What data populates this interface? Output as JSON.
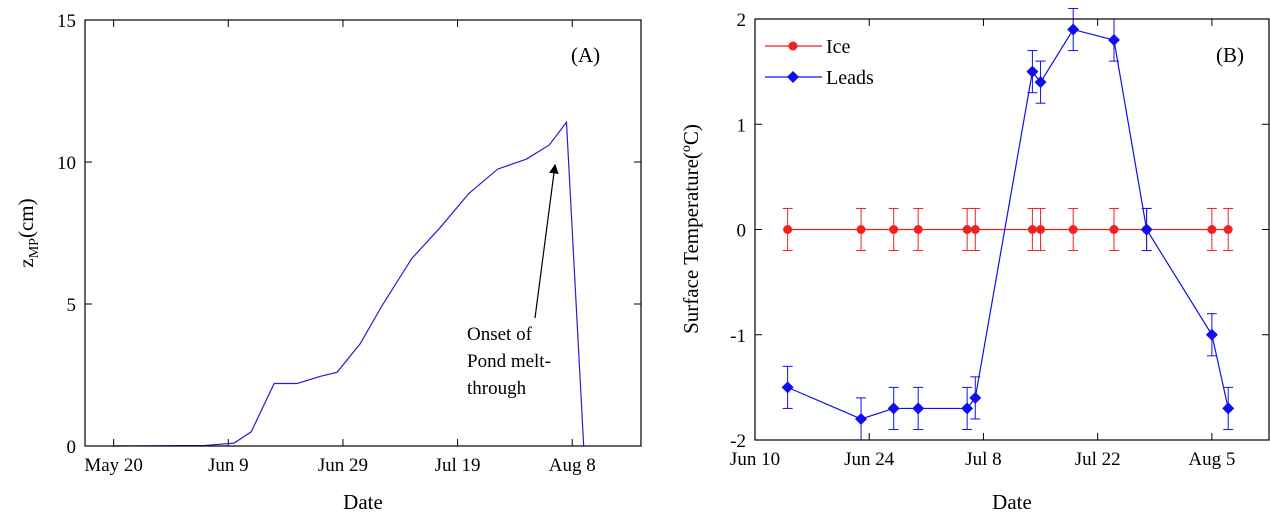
{
  "chart_data": [
    {
      "type": "line",
      "panel_label": "(A)",
      "xlabel": "Date",
      "ylabel_main": "z",
      "ylabel_sub": "MP",
      "ylabel_rest": "(cm)",
      "xlim": [
        "2008-05-15",
        "2008-08-20"
      ],
      "ylim": [
        0,
        15
      ],
      "xticks": [
        {
          "date": "2008-05-20",
          "label": "May 20"
        },
        {
          "date": "2008-06-09",
          "label": "Jun 9"
        },
        {
          "date": "2008-06-29",
          "label": "Jun 29"
        },
        {
          "date": "2008-07-19",
          "label": "Jul 19"
        },
        {
          "date": "2008-08-08",
          "label": "Aug 8"
        }
      ],
      "yticks": [
        0,
        5,
        10,
        15
      ],
      "grid": false,
      "line_color": "#2222cc",
      "series": [
        {
          "x": [
            "2008-05-20",
            "2008-06-05",
            "2008-06-10",
            "2008-06-13",
            "2008-06-17",
            "2008-06-21",
            "2008-06-25",
            "2008-06-28",
            "2008-07-02",
            "2008-07-06",
            "2008-07-11",
            "2008-07-16",
            "2008-07-21",
            "2008-07-26",
            "2008-07-31",
            "2008-08-04",
            "2008-08-07",
            "2008-08-10"
          ],
          "y": [
            0,
            0.02,
            0.1,
            0.5,
            2.2,
            2.2,
            2.45,
            2.6,
            3.6,
            5.0,
            6.6,
            7.7,
            8.9,
            9.75,
            10.1,
            10.6,
            11.4,
            0
          ]
        }
      ],
      "annotation": {
        "lines": [
          "Onset of",
          "Pond melt-",
          "through"
        ],
        "arrow_to": {
          "date": "2008-08-05",
          "y": 9.9
        }
      }
    },
    {
      "type": "line",
      "panel_label": "(B)",
      "xlabel": "Date",
      "ylabel_main": "Surface Temperature(",
      "ylabel_sup": "o",
      "ylabel_rest": "C)",
      "xlim": [
        "2008-06-10",
        "2008-08-12"
      ],
      "ylim": [
        -2,
        2
      ],
      "xticks": [
        {
          "date": "2008-06-10",
          "label": "Jun 10"
        },
        {
          "date": "2008-06-24",
          "label": "Jun 24"
        },
        {
          "date": "2008-07-08",
          "label": "Jul 8"
        },
        {
          "date": "2008-07-22",
          "label": "Jul 22"
        },
        {
          "date": "2008-08-05",
          "label": "Aug 5"
        }
      ],
      "yticks": [
        -2,
        -1,
        0,
        1,
        2
      ],
      "grid": false,
      "legend_position": "top-left",
      "series": [
        {
          "name": "Ice",
          "color": "#ee2222",
          "marker": "circle",
          "x": [
            "2008-06-14",
            "2008-06-23",
            "2008-06-27",
            "2008-06-30",
            "2008-07-06",
            "2008-07-07",
            "2008-07-14",
            "2008-07-15",
            "2008-07-19",
            "2008-07-24",
            "2008-07-28",
            "2008-08-05",
            "2008-08-07"
          ],
          "y": [
            0,
            0,
            0,
            0,
            0,
            0,
            0,
            0,
            0,
            0,
            0,
            0,
            0
          ],
          "err": [
            0.2,
            0.2,
            0.2,
            0.2,
            0.2,
            0.2,
            0.2,
            0.2,
            0.2,
            0.2,
            0.2,
            0.2,
            0.2
          ]
        },
        {
          "name": "Leads",
          "color": "#1010ee",
          "marker": "diamond",
          "x": [
            "2008-06-14",
            "2008-06-23",
            "2008-06-27",
            "2008-06-30",
            "2008-07-06",
            "2008-07-07",
            "2008-07-14",
            "2008-07-15",
            "2008-07-19",
            "2008-07-24",
            "2008-07-28",
            "2008-08-05",
            "2008-08-07"
          ],
          "y": [
            -1.5,
            -1.8,
            -1.7,
            -1.7,
            -1.7,
            -1.6,
            1.5,
            1.4,
            1.9,
            1.8,
            0,
            -1.0,
            -1.7
          ],
          "err": [
            0.2,
            0.2,
            0.2,
            0.2,
            0.2,
            0.2,
            0.2,
            0.2,
            0.2,
            0.2,
            0.2,
            0.2,
            0.2
          ]
        }
      ]
    }
  ]
}
